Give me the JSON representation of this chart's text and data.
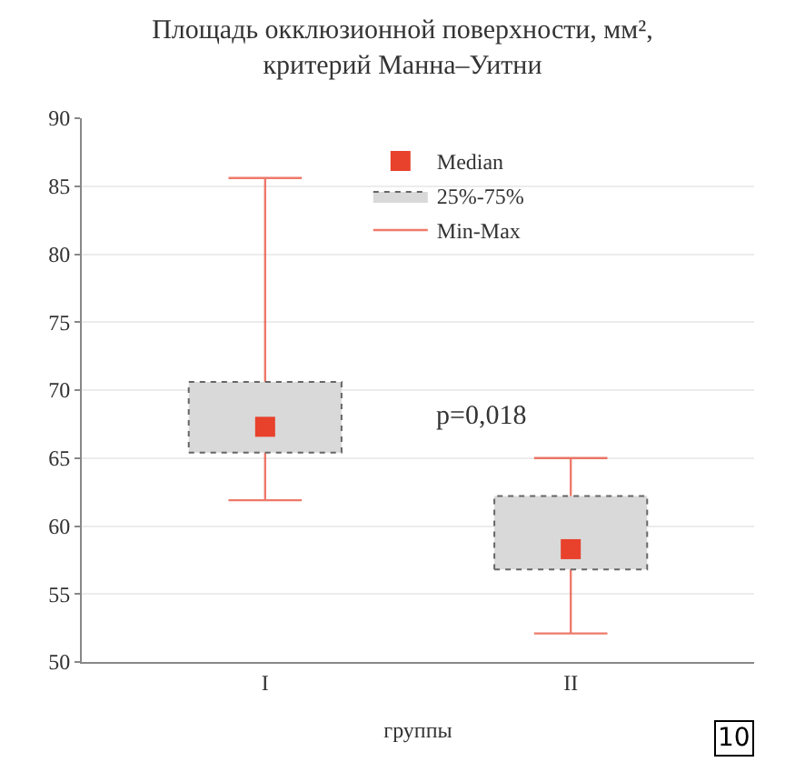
{
  "chart_data": {
    "type": "box",
    "title": "Площадь окклюзионной поверхности, мм²,\nкритерий Манна–Уитни",
    "xlabel": "группы",
    "categories": [
      "I",
      "II"
    ],
    "series": [
      {
        "name": "25%-75%",
        "color": "#d9d9d9",
        "boxes": [
          {
            "low": 61.9,
            "q1": 65.4,
            "q3": 70.6,
            "high": 85.6
          },
          {
            "low": 52.1,
            "q1": 56.8,
            "q3": 62.2,
            "high": 65.0
          }
        ]
      },
      {
        "name": "Median",
        "type": "scatter",
        "color": "#e8412c",
        "x": [
          "I",
          "II"
        ],
        "values": [
          67.3,
          58.3
        ]
      }
    ],
    "annotations": [
      "p=0,018",
      "Min-Max",
      "10"
    ],
    "ylim": [
      50,
      90
    ],
    "yticks": [
      50,
      55,
      60,
      65,
      70,
      75,
      80,
      85,
      90
    ],
    "grid": "y",
    "legend": "top right",
    "marker": "square"
  }
}
